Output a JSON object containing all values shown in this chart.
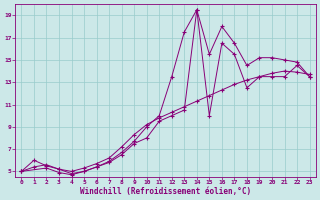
{
  "xlabel": "Windchill (Refroidissement éolien,°C)",
  "xlim": [
    -0.5,
    23.5
  ],
  "ylim": [
    4.5,
    20.0
  ],
  "xticks": [
    0,
    1,
    2,
    3,
    4,
    5,
    6,
    7,
    8,
    9,
    10,
    11,
    12,
    13,
    14,
    15,
    16,
    17,
    18,
    19,
    20,
    21,
    22,
    23
  ],
  "yticks": [
    5,
    7,
    9,
    11,
    13,
    15,
    17,
    19
  ],
  "bg_color": "#cce8e8",
  "line_color": "#880077",
  "grid_color": "#99cccc",
  "series1_x": [
    0,
    1,
    2,
    3,
    4,
    5,
    6,
    7,
    8,
    9,
    10,
    11,
    12,
    13,
    14,
    15,
    16,
    17,
    18,
    19,
    20,
    21,
    22,
    23
  ],
  "series1_y": [
    5.0,
    6.0,
    5.5,
    5.2,
    4.8,
    5.0,
    5.4,
    5.9,
    6.7,
    7.7,
    9.0,
    10.0,
    13.5,
    17.5,
    19.5,
    15.5,
    18.0,
    16.5,
    14.5,
    15.2,
    15.2,
    15.0,
    14.8,
    13.5
  ],
  "series2_x": [
    0,
    2,
    3,
    4,
    5,
    6,
    7,
    8,
    9,
    10,
    11,
    12,
    13,
    14,
    15,
    16,
    17,
    18,
    19,
    20,
    21,
    22,
    23
  ],
  "series2_y": [
    5.0,
    5.3,
    4.9,
    4.7,
    5.0,
    5.4,
    5.8,
    6.5,
    7.5,
    8.0,
    9.5,
    10.0,
    10.5,
    19.5,
    10.0,
    16.5,
    15.5,
    12.5,
    13.5,
    13.5,
    13.5,
    14.5,
    13.5
  ],
  "series3_x": [
    0,
    1,
    2,
    3,
    4,
    5,
    6,
    7,
    8,
    9,
    10,
    11,
    12,
    13,
    14,
    15,
    16,
    17,
    18,
    19,
    20,
    21,
    22,
    23
  ],
  "series3_y": [
    5.0,
    5.4,
    5.6,
    5.2,
    5.0,
    5.3,
    5.7,
    6.2,
    7.2,
    8.3,
    9.2,
    9.8,
    10.3,
    10.8,
    11.3,
    11.8,
    12.3,
    12.8,
    13.2,
    13.5,
    13.8,
    14.0,
    13.9,
    13.7
  ]
}
